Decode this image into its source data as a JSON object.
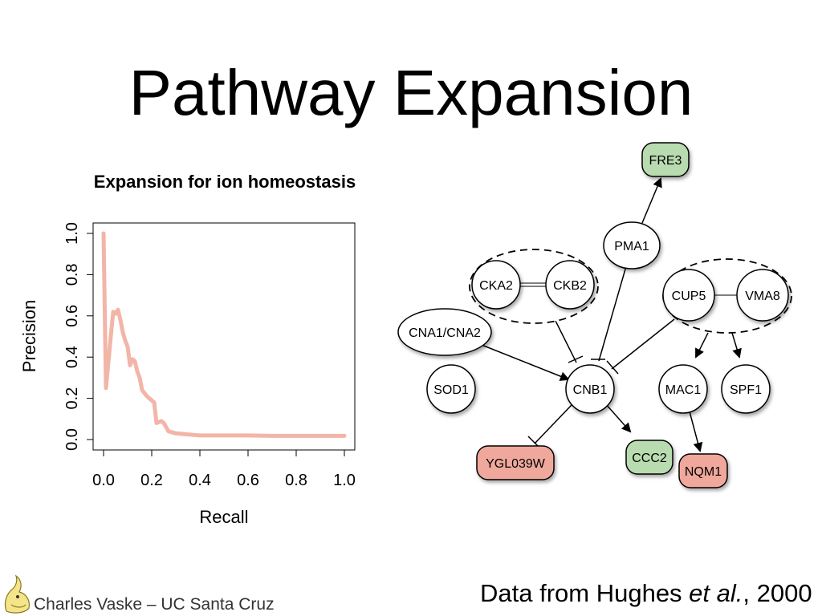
{
  "slide": {
    "title": "Pathway Expansion",
    "footer_author": "Charles Vaske – UC Santa Cruz",
    "citation_prefix": "Data from Hughes ",
    "citation_etal": "et al.",
    "citation_suffix": ", 2000"
  },
  "chart_data": {
    "type": "line",
    "title": "Expansion for ion homeostasis",
    "xlabel": "Recall",
    "ylabel": "Precision",
    "xlim": [
      0,
      1
    ],
    "ylim": [
      0,
      1
    ],
    "xticks": [
      "0.0",
      "0.2",
      "0.4",
      "0.6",
      "0.8",
      "1.0"
    ],
    "yticks": [
      "0.0",
      "0.2",
      "0.4",
      "0.6",
      "0.8",
      "1.0"
    ],
    "line_color": "#f2b5a8",
    "series": [
      {
        "x": [
          0.0,
          0.01,
          0.03,
          0.04,
          0.05,
          0.06,
          0.07,
          0.08,
          0.09,
          0.1,
          0.11,
          0.12,
          0.13,
          0.14,
          0.15,
          0.16,
          0.18,
          0.2,
          0.21,
          0.22,
          0.24,
          0.25,
          0.27,
          0.3,
          0.35,
          0.4,
          0.5,
          0.6,
          0.7,
          0.8,
          0.9,
          1.0
        ],
        "y": [
          1.0,
          0.25,
          0.5,
          0.62,
          0.61,
          0.63,
          0.58,
          0.52,
          0.48,
          0.45,
          0.36,
          0.39,
          0.38,
          0.33,
          0.3,
          0.24,
          0.21,
          0.19,
          0.18,
          0.08,
          0.09,
          0.08,
          0.04,
          0.03,
          0.025,
          0.02,
          0.02,
          0.02,
          0.018,
          0.018,
          0.018,
          0.018
        ]
      }
    ]
  },
  "network": {
    "colors": {
      "green": "#b8dcb0",
      "red": "#f0a89c",
      "white": "#ffffff"
    },
    "nodes": {
      "fre3": "FRE3",
      "pma1": "PMA1",
      "cka2": "CKA2",
      "ckb2": "CKB2",
      "cup5": "CUP5",
      "vma8": "VMA8",
      "cna": "CNA1/CNA2",
      "sod1": "SOD1",
      "cnb1": "CNB1",
      "mac1": "MAC1",
      "spf1": "SPF1",
      "ygl": "YGL039W",
      "ccc2": "CCC2",
      "nqm1": "NQM1"
    }
  }
}
